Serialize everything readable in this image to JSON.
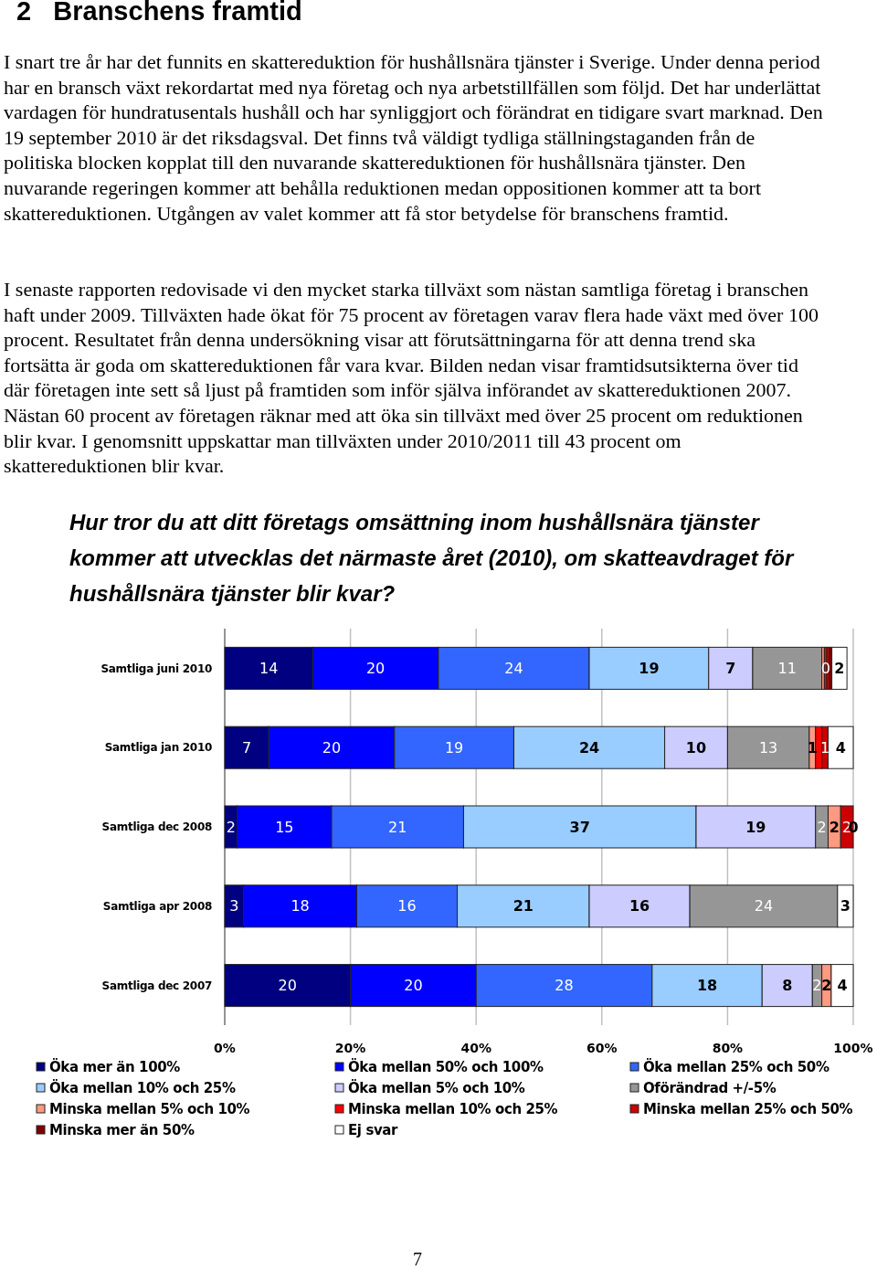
{
  "chart_data": {
    "type": "bar",
    "orientation": "horizontal",
    "stacked": true,
    "title": "Hur tror du att ditt företags omsättning inom hushållsnära tjänster kommer att utvecklas det närmaste året (2010), om skatteavdraget för hushållsnära tjänster blir kvar?",
    "annotations": [
      "2   Branschens framtid",
      "I snart tre år har det funnits en skattereduktion för hushållsnära tjänster i Sverige. Under denna period har en bransch växt rekordartat med nya företag och nya arbetstillfällen som följd. Det har underlättat vardagen för hundratusentals hushåll och har synliggjort och förändrat en tidigare svart marknad. Den 19 september 2010 är det riksdagsval. Det finns två väldigt tydliga ställningstaganden från de politiska blocken kopplat till den nuvarande skattereduktionen för hushållsnära tjänster. Den nuvarande regeringen kommer att behålla reduktionen medan oppositionen kommer att ta bort skattereduktionen. Utgången av valet kommer att få stor betydelse för branschens framtid.",
      "I senaste rapporten redovisade vi den mycket starka tillväxt som nästan samtliga företag i branschen haft under 2009. Tillväxten hade ökat för 75 procent av företagen varav flera hade växt med över 100 procent. Resultatet från denna undersökning visar att förutsättningarna för att denna trend ska fortsätta är goda om skattereduktionen får vara kvar. Bilden nedan visar framtidsutsikterna över tid där företagen inte sett så ljust på framtiden som inför själva införandet av skattereduktionen 2007. Nästan 60 procent av företagen räknar med att öka sin tillväxt med över 25 procent om reduktionen blir kvar. I genomsnitt uppskattar man tillväxten under 2010/2011 till 43 procent om skattereduktionen blir kvar.",
      "7"
    ],
    "categories": [
      "Samtliga juni 2010",
      "Samtliga jan 2010",
      "Samtliga dec 2008",
      "Samtliga apr 2008",
      "Samtliga dec 2007"
    ],
    "xlim": [
      0,
      100
    ],
    "xticks": [
      {
        "value": 0,
        "label": "0%"
      },
      {
        "value": 20,
        "label": "20%"
      },
      {
        "value": 40,
        "label": "40%"
      },
      {
        "value": 60,
        "label": "60%"
      },
      {
        "value": 80,
        "label": "80%"
      },
      {
        "value": 100,
        "label": "100%"
      }
    ],
    "grid": "x",
    "legend": "bottom",
    "series": [
      {
        "name": "Öka mer än 100%",
        "color": "#000080",
        "values": [
          14,
          7,
          2,
          3,
          20
        ],
        "value_labels": [
          "14",
          "7",
          "2",
          "3",
          "20"
        ]
      },
      {
        "name": "Öka mellan 50% och 100%",
        "color": "#0000ff",
        "values": [
          20,
          20,
          15,
          18,
          20
        ],
        "value_labels": [
          "20",
          "20",
          "15",
          "18",
          "20"
        ]
      },
      {
        "name": "Öka mellan 25% och 50%",
        "color": "#3366ff",
        "values": [
          24,
          19,
          21,
          16,
          28
        ],
        "value_labels": [
          "24",
          "19",
          "21",
          "16",
          "28"
        ]
      },
      {
        "name": "Öka mellan 10% och 25%",
        "color": "#99ccff",
        "values": [
          19,
          24,
          37,
          21,
          17.5
        ],
        "value_labels": [
          "19",
          "24",
          "37",
          "21",
          "18"
        ]
      },
      {
        "name": "Öka mellan 5% och 10%",
        "color": "#ccccff",
        "values": [
          7,
          10,
          19,
          16,
          8
        ],
        "value_labels": [
          "7",
          "10",
          "19",
          "16",
          "8"
        ]
      },
      {
        "name": "Oförändrad +/-5%",
        "color": "#969696",
        "values": [
          11,
          13,
          2,
          23.5,
          1.5
        ],
        "value_labels": [
          "11",
          "13",
          "2",
          "24",
          "2"
        ]
      },
      {
        "name": "Minska mellan 5% och 10%",
        "color": "#ff9980",
        "values": [
          0.4,
          1,
          2,
          0,
          1.5
        ],
        "value_labels": [
          null,
          "1",
          "2",
          null,
          "2"
        ]
      },
      {
        "name": "Minska mellan 10% och 25%",
        "color": "#ff0000",
        "values": [
          0.4,
          1,
          0,
          0,
          0
        ],
        "value_labels": [
          "0",
          null,
          null,
          null,
          null
        ]
      },
      {
        "name": "Minska mellan 25% och 50%",
        "color": "#cc0000",
        "values": [
          0.4,
          1,
          2,
          0,
          0
        ],
        "value_labels": [
          null,
          "1",
          "2",
          null,
          null
        ]
      },
      {
        "name": "Minska mer än 50%",
        "color": "#800000",
        "values": [
          0.4,
          0,
          0,
          0,
          0
        ],
        "value_labels": [
          null,
          null,
          null,
          null,
          null
        ]
      },
      {
        "name": "Ej svar",
        "color": "#ffffff",
        "values": [
          2.4,
          4,
          0,
          2.5,
          3.5
        ],
        "value_labels": [
          "2",
          "4",
          "0",
          "3",
          "4"
        ]
      }
    ]
  }
}
